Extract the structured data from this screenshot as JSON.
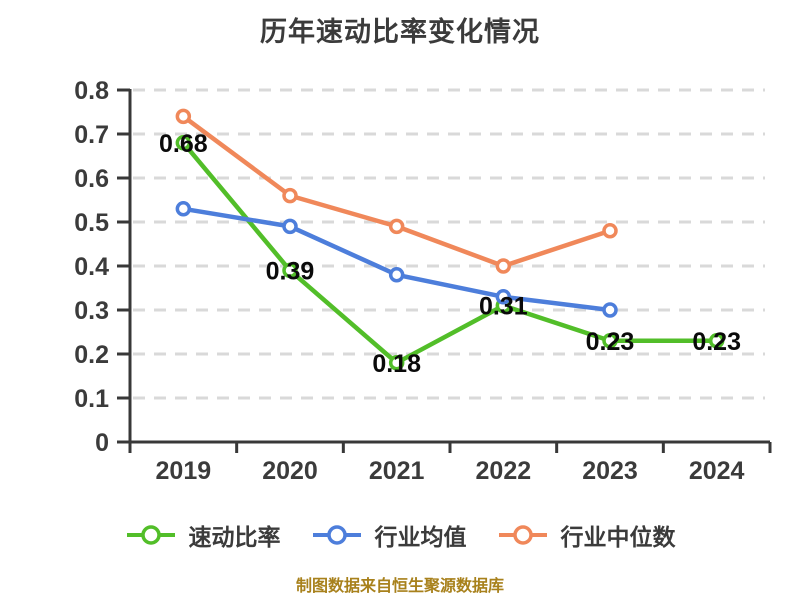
{
  "footer": {
    "text": "制图数据来自恒生聚源数据库",
    "color": "#a8811c"
  },
  "chart_data": {
    "type": "line",
    "title": "历年速动比率变化情况",
    "categories": [
      "2019",
      "2020",
      "2021",
      "2022",
      "2023",
      "2024"
    ],
    "series": [
      {
        "name": "速动比率",
        "color": "#52BE29",
        "values": [
          0.68,
          0.39,
          0.18,
          0.31,
          0.23,
          0.23
        ],
        "labels": [
          "0.68",
          "0.39",
          "0.18",
          "0.31",
          "0.23",
          "0.23"
        ],
        "show_labels": true
      },
      {
        "name": "行业均值",
        "color": "#4D7EDB",
        "values": [
          0.53,
          0.49,
          0.38,
          0.33,
          0.3,
          null
        ],
        "labels": [],
        "show_labels": false
      },
      {
        "name": "行业中位数",
        "color": "#F0885A",
        "values": [
          0.74,
          0.56,
          0.49,
          0.4,
          0.48,
          null
        ],
        "labels": [],
        "show_labels": false
      }
    ],
    "xlabel": "",
    "ylabel": "",
    "ylim": [
      0,
      0.8
    ],
    "yticks": [
      "0.8",
      "0.7",
      "0.6",
      "0.5",
      "0.4",
      "0.3",
      "0.2",
      "0.1",
      "0"
    ],
    "grid": "dashed horizontal",
    "grid_color": "#d9d9d9",
    "axis_color": "#383838",
    "legend_position": "bottom"
  }
}
